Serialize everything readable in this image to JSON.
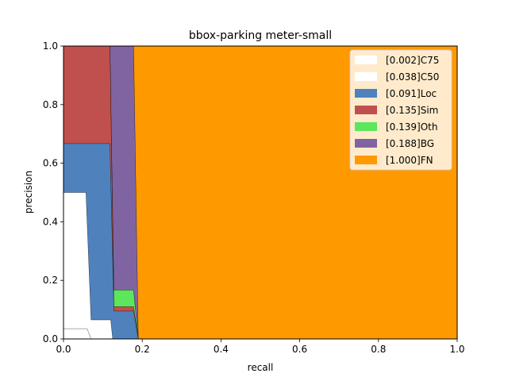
{
  "chart_data": {
    "type": "area",
    "title": "bbox-parking meter-small",
    "xlabel": "recall",
    "ylabel": "precision",
    "xlim": [
      0,
      1
    ],
    "ylim": [
      0,
      1
    ],
    "xticks": [
      "0.0",
      "0.2",
      "0.4",
      "0.6",
      "0.8",
      "1.0"
    ],
    "yticks": [
      "0.0",
      "0.2",
      "0.4",
      "0.6",
      "0.8",
      "1.0"
    ],
    "legend_position": "top-right",
    "series": [
      {
        "name": "[0.002]C75",
        "color": "#ffffff",
        "points": [
          [
            0,
            0.035
          ],
          [
            0.06,
            0.035
          ],
          [
            0.07,
            0.0
          ],
          [
            0,
            0.0
          ]
        ]
      },
      {
        "name": "[0.038]C50",
        "color": "#ffffff",
        "points": [
          [
            0,
            0.5
          ],
          [
            0.057,
            0.5
          ],
          [
            0.07,
            0.065
          ],
          [
            0.12,
            0.065
          ],
          [
            0.125,
            0.0
          ],
          [
            0,
            0.0
          ]
        ]
      },
      {
        "name": "[0.091]Loc",
        "color": "#4f81bd",
        "points": [
          [
            0,
            0.667
          ],
          [
            0.118,
            0.667
          ],
          [
            0.128,
            0.095
          ],
          [
            0.178,
            0.095
          ],
          [
            0.19,
            0.0
          ],
          [
            0,
            0.0
          ]
        ]
      },
      {
        "name": "[0.135]Sim",
        "color": "#c0504d",
        "points": [
          [
            0,
            1.0
          ],
          [
            0.118,
            1.0
          ],
          [
            0.128,
            0.11
          ],
          [
            0.178,
            0.11
          ],
          [
            0.19,
            0.0
          ],
          [
            0,
            0.0
          ]
        ]
      },
      {
        "name": "[0.139]Oth",
        "color": "#5ce65c",
        "points": [
          [
            0,
            1.0
          ],
          [
            0.118,
            1.0
          ],
          [
            0.128,
            0.167
          ],
          [
            0.178,
            0.167
          ],
          [
            0.19,
            0.0
          ],
          [
            0,
            0.0
          ]
        ]
      },
      {
        "name": "[0.188]BG",
        "color": "#8064a2",
        "points": [
          [
            0,
            1.0
          ],
          [
            0.178,
            1.0
          ],
          [
            0.19,
            0.0
          ],
          [
            0,
            0.0
          ]
        ]
      },
      {
        "name": "[1.000]FN",
        "color": "#ff9900",
        "points": [
          [
            0,
            1.0
          ],
          [
            1.0,
            1.0
          ],
          [
            1.0,
            0.0
          ],
          [
            0,
            0.0
          ]
        ]
      }
    ]
  }
}
